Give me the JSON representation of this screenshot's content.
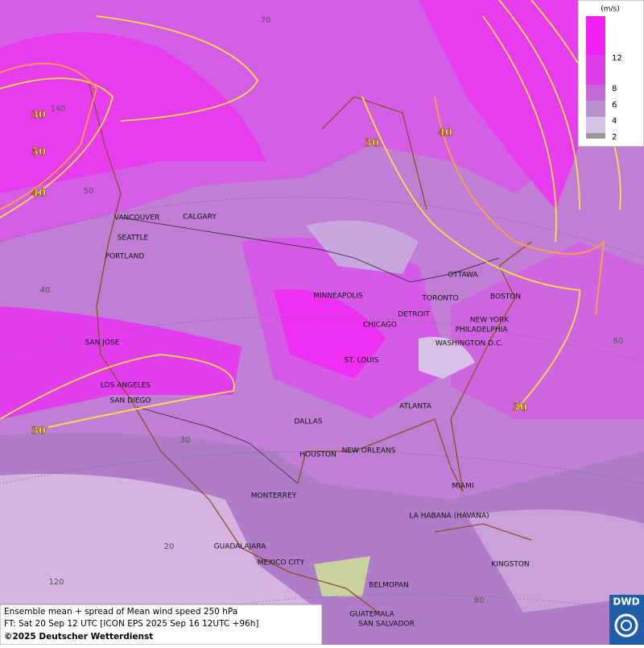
{
  "legend": {
    "unit": "(m/s)",
    "levels": [
      12,
      8,
      6,
      4,
      2
    ]
  },
  "cities": [
    "VANCOUVER",
    "CALGARY",
    "SEATTLE",
    "PORTLAND",
    "MINNEAPOLIS",
    "TORONTO",
    "OTTAWA",
    "DETROIT",
    "CHICAGO",
    "BOSTON",
    "NEW YORK",
    "PHILADELPHIA",
    "WASHINGTON D.C.",
    "SAN JOSE",
    "ST. LOUIS",
    "LOS ANGELES",
    "SAN DIEGO",
    "DALLAS",
    "ATLANTA",
    "HOUSTON",
    "NEW ORLEANS",
    "MIAMI",
    "MONTERREY",
    "LA HABANA (HAVANA)",
    "GUADALAJARA",
    "MEXICO CITY",
    "KINGSTON",
    "BELMOPAN",
    "GUATEMALA",
    "SAN SALVADOR"
  ],
  "contour_labels": [
    30,
    50,
    40,
    30,
    40,
    30,
    30
  ],
  "grid_labels": [
    70,
    140,
    50,
    40,
    30,
    20,
    120,
    80,
    60
  ],
  "caption": [
    "Ensemble mean + spread of Mean wind speed 250 hPa",
    "FT: Sat 20 Sep 12 UTC [ICON EPS 2025 Sep 16 12UTC +96h]",
    "©2025 Deutscher Wetterdienst"
  ],
  "logo": "DWD"
}
